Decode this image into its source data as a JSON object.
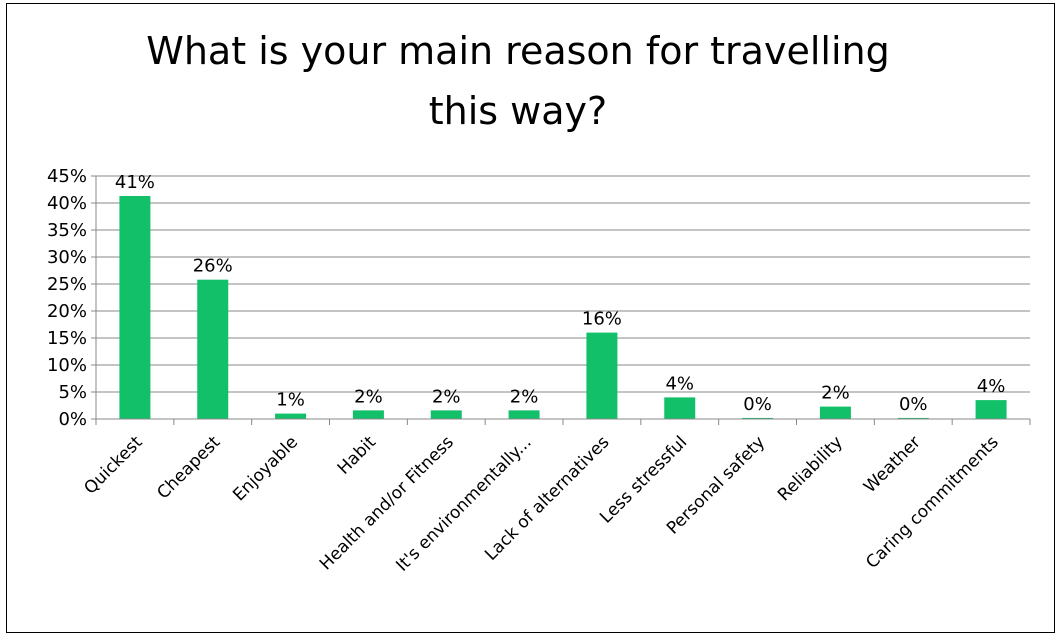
{
  "chart_data": {
    "type": "bar",
    "title_lines": [
      "What is your main reason for travelling",
      "this way?"
    ],
    "categories": [
      "Quickest",
      "Cheapest",
      "Enjoyable",
      "Habit",
      "Health and/or Fitness",
      "It's environmentally...",
      "Lack of alternatives",
      "Less stressful",
      "Personal safety",
      "Reliability",
      "Weather",
      "Caring commitments"
    ],
    "values": [
      41.3,
      25.8,
      1.0,
      1.6,
      1.6,
      1.6,
      16.0,
      4.0,
      0.2,
      2.3,
      0.2,
      3.5
    ],
    "data_labels": [
      "41%",
      "26%",
      "1%",
      "2%",
      "2%",
      "2%",
      "16%",
      "4%",
      "0%",
      "2%",
      "0%",
      "4%"
    ],
    "yticks": [
      0,
      5,
      10,
      15,
      20,
      25,
      30,
      35,
      40,
      45
    ],
    "ytick_labels": [
      "0%",
      "5%",
      "10%",
      "15%",
      "20%",
      "25%",
      "30%",
      "35%",
      "40%",
      "45%"
    ],
    "ylim": [
      0,
      45
    ],
    "xlabel": "",
    "ylabel": "",
    "grid": true,
    "legend": "none",
    "bar_color": "#12c06a",
    "grid_color": "#888888"
  }
}
